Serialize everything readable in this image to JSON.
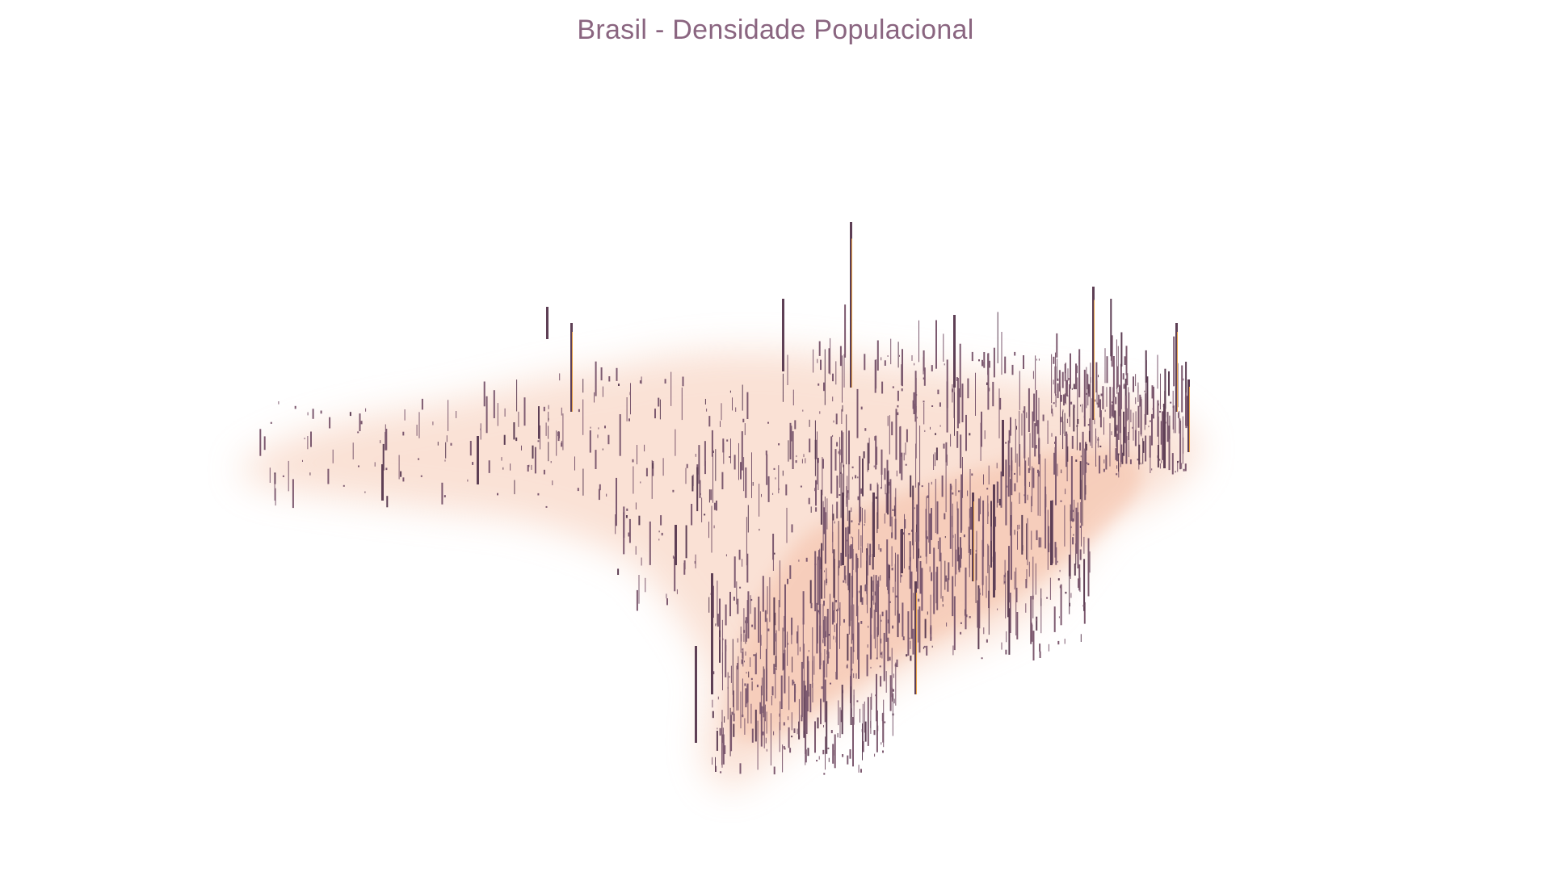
{
  "title": "Brasil - Densidade Populacional",
  "colors": {
    "spike": "#7d5a70",
    "spike_dark": "#5e3f55",
    "spike_hot": "#e8a44a",
    "glow": "#f6c9b3",
    "title": "#8a6580",
    "background": "#ffffff"
  }
}
